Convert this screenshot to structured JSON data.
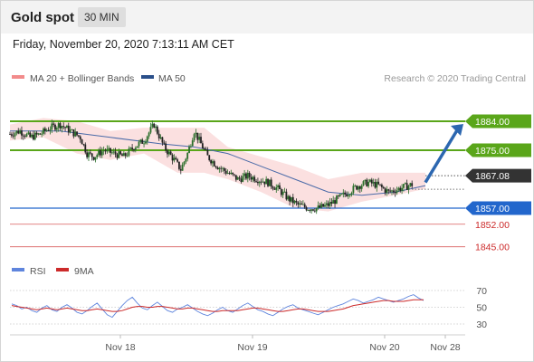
{
  "header": {
    "title": "Gold spot",
    "timeframe": "30 MIN"
  },
  "datetime": "Friday, November 20, 2020 7:13:11 AM CET",
  "legend": {
    "bb": "MA 20 + Bollinger Bands",
    "ma50": "MA 50",
    "credit": "Research © 2020 Trading Central"
  },
  "rsi_legend": {
    "rsi": "RSI",
    "ma": "9MA"
  },
  "colors": {
    "resistance": "#5aa61a",
    "support": "#2266cc",
    "minor_support": "#cc2a2a",
    "bullish": "#2a6e2a",
    "bearish": "#222222",
    "ma50": "#4a6aa8",
    "bb_fill": "#f9d6d6",
    "rsi": "#5f85dd",
    "rsi_ma": "#cc2a2a",
    "arrow": "#2c67b0"
  },
  "chart_data": [
    {
      "type": "candlestick",
      "title": "Gold spot",
      "timeframe": "30 MIN",
      "x_ticks": [
        "Nov 18",
        "Nov 19",
        "Nov 20",
        "Nov 28"
      ],
      "ylim": [
        1838,
        1892
      ],
      "current_price": 1867.08,
      "levels": [
        {
          "value": 1884.0,
          "label": "1884.00",
          "kind": "resistance"
        },
        {
          "value": 1875.0,
          "label": "1875.00",
          "kind": "resistance"
        },
        {
          "value": 1857.0,
          "label": "1857.00",
          "kind": "support"
        },
        {
          "value": 1852.0,
          "label": "1852.00",
          "kind": "minor_support"
        },
        {
          "value": 1845.0,
          "label": "1845.00",
          "kind": "minor_support"
        }
      ],
      "current_label": "1867.08",
      "forecast_target": 1884.0,
      "close_path": [
        [
          0,
          1880
        ],
        [
          6,
          1881
        ],
        [
          12,
          1879
        ],
        [
          18,
          1880
        ],
        [
          24,
          1882
        ],
        [
          30,
          1883
        ],
        [
          36,
          1881
        ],
        [
          42,
          1879
        ],
        [
          46,
          1874
        ],
        [
          50,
          1873
        ],
        [
          56,
          1875
        ],
        [
          62,
          1874
        ],
        [
          68,
          1873
        ],
        [
          74,
          1876
        ],
        [
          80,
          1878
        ],
        [
          86,
          1883
        ],
        [
          92,
          1876
        ],
        [
          98,
          1872
        ],
        [
          102,
          1869
        ],
        [
          106,
          1874
        ],
        [
          110,
          1881
        ],
        [
          114,
          1877
        ],
        [
          118,
          1873
        ],
        [
          124,
          1870
        ],
        [
          130,
          1868
        ],
        [
          136,
          1866
        ],
        [
          142,
          1867
        ],
        [
          148,
          1866
        ],
        [
          154,
          1865
        ],
        [
          160,
          1863
        ],
        [
          166,
          1860
        ],
        [
          172,
          1858
        ],
        [
          178,
          1857
        ],
        [
          184,
          1857
        ],
        [
          190,
          1858
        ],
        [
          196,
          1860
        ],
        [
          202,
          1862
        ],
        [
          208,
          1864
        ],
        [
          214,
          1865
        ],
        [
          220,
          1864
        ],
        [
          226,
          1862
        ],
        [
          232,
          1863
        ],
        [
          238,
          1864
        ],
        [
          244,
          1865
        ],
        [
          248,
          1867
        ]
      ],
      "ma50": [
        [
          0,
          1881
        ],
        [
          30,
          1881
        ],
        [
          60,
          1879
        ],
        [
          90,
          1877
        ],
        [
          110,
          1876
        ],
        [
          130,
          1874
        ],
        [
          150,
          1870
        ],
        [
          170,
          1866
        ],
        [
          190,
          1862
        ],
        [
          210,
          1861
        ],
        [
          230,
          1862
        ],
        [
          248,
          1864
        ]
      ],
      "bollinger": {
        "upper": [
          [
            0,
            1883
          ],
          [
            20,
            1885
          ],
          [
            40,
            1884
          ],
          [
            60,
            1881
          ],
          [
            80,
            1882
          ],
          [
            100,
            1882
          ],
          [
            116,
            1882
          ],
          [
            130,
            1876
          ],
          [
            150,
            1873
          ],
          [
            170,
            1870
          ],
          [
            190,
            1866
          ],
          [
            210,
            1868
          ],
          [
            230,
            1868
          ],
          [
            248,
            1868
          ]
        ],
        "lower": [
          [
            0,
            1878
          ],
          [
            20,
            1879
          ],
          [
            40,
            1874
          ],
          [
            60,
            1872
          ],
          [
            80,
            1874
          ],
          [
            100,
            1868
          ],
          [
            116,
            1868
          ],
          [
            130,
            1866
          ],
          [
            150,
            1862
          ],
          [
            170,
            1857
          ],
          [
            190,
            1856
          ],
          [
            210,
            1859
          ],
          [
            230,
            1861
          ],
          [
            248,
            1863
          ]
        ]
      }
    },
    {
      "type": "line",
      "title": "RSI",
      "y_ticks": [
        "70",
        "50",
        "30"
      ],
      "ylim": [
        20,
        80
      ],
      "series": [
        {
          "name": "RSI",
          "values": [
            54,
            52,
            48,
            50,
            46,
            44,
            49,
            52,
            47,
            45,
            50,
            53,
            49,
            44,
            42,
            46,
            51,
            55,
            48,
            41,
            38,
            45,
            52,
            58,
            62,
            55,
            49,
            47,
            52,
            56,
            51,
            46,
            44,
            48,
            50,
            53,
            49,
            45,
            42,
            40,
            43,
            47,
            50,
            46,
            44,
            48,
            52,
            55,
            51,
            47,
            45,
            42,
            40,
            44,
            48,
            51,
            53,
            49,
            47,
            45,
            43,
            41,
            44,
            47,
            50,
            52,
            54,
            57,
            60,
            58,
            55,
            57,
            59,
            62,
            60,
            58,
            56,
            58,
            60,
            63,
            65,
            61,
            58
          ]
        },
        {
          "name": "9MA",
          "values": [
            52,
            51,
            50,
            49,
            48,
            47,
            48,
            49,
            48,
            47,
            48,
            49,
            48,
            47,
            46,
            46,
            47,
            48,
            47,
            46,
            45,
            45,
            46,
            48,
            50,
            51,
            51,
            50,
            50,
            51,
            51,
            50,
            49,
            48,
            48,
            49,
            49,
            48,
            47,
            46,
            45,
            45,
            46,
            46,
            46,
            46,
            47,
            48,
            49,
            49,
            48,
            47,
            46,
            45,
            45,
            46,
            47,
            48,
            48,
            47,
            46,
            45,
            45,
            45,
            46,
            47,
            48,
            50,
            52,
            53,
            54,
            55,
            56,
            57,
            58,
            58,
            57,
            57,
            57,
            58,
            59,
            59,
            59
          ]
        }
      ]
    }
  ]
}
